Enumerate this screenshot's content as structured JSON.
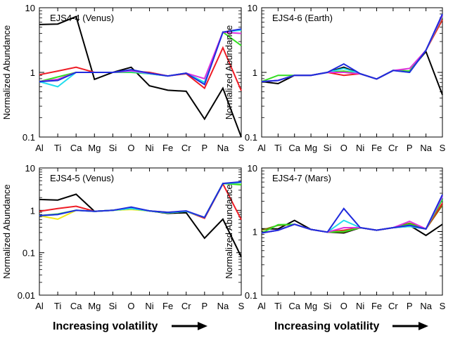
{
  "chart_data": [
    {
      "type": "line",
      "title": "EJS4-4 (Venus)",
      "ylabel": "Normalized Abundance",
      "yscale": "log",
      "ylim": [
        0.1,
        10
      ],
      "yticks": [
        "10",
        "1",
        "0.1"
      ],
      "categories": [
        "Al",
        "Ti",
        "Ca",
        "Mg",
        "Si",
        "O",
        "Ni",
        "Fe",
        "Cr",
        "P",
        "Na",
        "S"
      ],
      "series": [
        {
          "name": "black",
          "color": "#000000",
          "values": [
            5.5,
            5.6,
            7.3,
            0.78,
            1.0,
            1.2,
            0.62,
            0.53,
            0.51,
            0.19,
            0.57,
            0.1
          ]
        },
        {
          "name": "red",
          "color": "#ee1c25",
          "values": [
            0.92,
            1.05,
            1.2,
            1.0,
            1.0,
            1.05,
            1.0,
            0.88,
            0.95,
            0.57,
            2.4,
            0.52
          ]
        },
        {
          "name": "green",
          "color": "#33dd22",
          "values": [
            0.72,
            0.85,
            1.0,
            1.0,
            1.0,
            1.0,
            0.95,
            0.88,
            0.97,
            0.7,
            4.2,
            2.6
          ]
        },
        {
          "name": "cyan",
          "color": "#22ddee",
          "values": [
            0.72,
            0.6,
            1.0,
            1.0,
            1.0,
            1.03,
            0.95,
            0.88,
            0.97,
            0.7,
            4.2,
            4.5
          ]
        },
        {
          "name": "magenta",
          "color": "#dd33dd",
          "values": [
            0.72,
            0.78,
            1.0,
            1.0,
            1.0,
            1.06,
            0.97,
            0.88,
            0.97,
            0.8,
            4.2,
            4.0
          ]
        },
        {
          "name": "blue",
          "color": "#1f2bdd",
          "values": [
            0.72,
            0.75,
            1.0,
            1.0,
            1.0,
            1.1,
            0.97,
            0.88,
            0.97,
            0.65,
            4.2,
            4.7
          ]
        }
      ]
    },
    {
      "type": "line",
      "title": "EJS4-6 (Earth)",
      "ylabel": "Normalized Abundance",
      "yscale": "log",
      "ylim": [
        0.1,
        10
      ],
      "yticks": [
        "10",
        "1",
        "0.1"
      ],
      "categories": [
        "Al",
        "Ti",
        "Ca",
        "Mg",
        "Si",
        "O",
        "Ni",
        "Fe",
        "Cr",
        "P",
        "Na",
        "S"
      ],
      "series": [
        {
          "name": "black",
          "color": "#000000",
          "values": [
            0.72,
            0.67,
            0.9,
            0.9,
            1.0,
            1.2,
            0.95,
            0.79,
            1.07,
            1.05,
            2.1,
            0.45
          ]
        },
        {
          "name": "red",
          "color": "#ee1c25",
          "values": [
            0.72,
            0.75,
            0.9,
            0.9,
            1.0,
            0.9,
            0.95,
            0.79,
            1.07,
            1.05,
            2.2,
            6.5
          ]
        },
        {
          "name": "green",
          "color": "#33dd22",
          "values": [
            0.72,
            0.9,
            0.9,
            0.9,
            1.0,
            1.05,
            0.95,
            0.79,
            1.07,
            1.05,
            2.2,
            7.2
          ]
        },
        {
          "name": "cyan",
          "color": "#22ddee",
          "values": [
            0.72,
            0.75,
            0.9,
            0.9,
            1.0,
            1.15,
            0.95,
            0.79,
            1.07,
            1.0,
            2.2,
            7.5
          ]
        },
        {
          "name": "magenta",
          "color": "#dd33dd",
          "values": [
            0.72,
            0.75,
            0.9,
            0.9,
            1.0,
            1.0,
            0.95,
            0.79,
            1.07,
            1.15,
            2.2,
            7.5
          ]
        },
        {
          "name": "blue",
          "color": "#1f2bdd",
          "values": [
            0.72,
            0.75,
            0.9,
            0.9,
            1.0,
            1.35,
            0.95,
            0.79,
            1.07,
            1.0,
            2.2,
            8.0
          ]
        }
      ]
    },
    {
      "type": "line",
      "title": "EJS4-5 (Venus)",
      "ylabel": "Normalized Abundance",
      "yscale": "log",
      "ylim": [
        0.01,
        10
      ],
      "yticks": [
        "10",
        "1",
        "0.1",
        "0.01"
      ],
      "categories": [
        "Al",
        "Ti",
        "Ca",
        "Mg",
        "Si",
        "O",
        "Ni",
        "Fe",
        "Cr",
        "P",
        "Na",
        "S"
      ],
      "series": [
        {
          "name": "black",
          "color": "#000000",
          "values": [
            1.8,
            1.75,
            2.4,
            0.95,
            1.0,
            1.15,
            0.97,
            0.85,
            0.88,
            0.22,
            0.62,
            0.08
          ]
        },
        {
          "name": "yellow",
          "color": "#f2ea1c",
          "values": [
            0.75,
            0.62,
            1.0,
            0.95,
            1.0,
            1.05,
            0.97,
            0.88,
            0.95,
            0.68,
            4.3,
            4.4
          ]
        },
        {
          "name": "red",
          "color": "#ee1c25",
          "values": [
            0.95,
            1.1,
            1.25,
            0.95,
            1.0,
            1.1,
            0.97,
            0.9,
            0.95,
            0.65,
            4.2,
            0.6
          ]
        },
        {
          "name": "green",
          "color": "#33dd22",
          "values": [
            0.75,
            0.82,
            1.0,
            0.95,
            1.0,
            1.1,
            0.97,
            0.88,
            0.95,
            0.68,
            4.3,
            4.0
          ]
        },
        {
          "name": "cyan",
          "color": "#22ddee",
          "values": [
            0.75,
            0.8,
            1.0,
            0.95,
            1.0,
            1.1,
            0.97,
            0.88,
            0.95,
            0.68,
            4.3,
            4.5
          ]
        },
        {
          "name": "blue",
          "color": "#1f2bdd",
          "values": [
            0.75,
            0.8,
            1.0,
            0.95,
            1.0,
            1.2,
            0.97,
            0.9,
            0.97,
            0.68,
            4.3,
            4.7
          ]
        }
      ]
    },
    {
      "type": "line",
      "title": "EJS4-7 (Mars)",
      "ylabel": "Normalized Abundance",
      "yscale": "log",
      "ylim": [
        0.1,
        10
      ],
      "yticks": [
        "10",
        "1",
        "0.1"
      ],
      "categories": [
        "Al",
        "Ti",
        "Ca",
        "Mg",
        "Si",
        "O",
        "Ni",
        "Fe",
        "Cr",
        "P",
        "Na",
        "S"
      ],
      "series": [
        {
          "name": "black",
          "color": "#000000",
          "values": [
            1.1,
            1.1,
            1.5,
            1.08,
            0.98,
            0.95,
            1.15,
            1.05,
            1.15,
            1.25,
            0.87,
            1.3
          ]
        },
        {
          "name": "olive",
          "color": "#777700",
          "values": [
            1.05,
            1.25,
            1.3,
            1.08,
            0.98,
            0.98,
            1.15,
            1.05,
            1.15,
            1.35,
            1.1,
            2.6
          ]
        },
        {
          "name": "red",
          "color": "#ee1c25",
          "values": [
            0.95,
            1.05,
            1.3,
            1.08,
            0.98,
            1.05,
            1.15,
            1.05,
            1.15,
            1.2,
            1.1,
            2.8
          ]
        },
        {
          "name": "green",
          "color": "#33dd22",
          "values": [
            0.95,
            1.28,
            1.3,
            1.08,
            0.98,
            1.0,
            1.15,
            1.05,
            1.15,
            1.3,
            1.1,
            3.2
          ]
        },
        {
          "name": "cyan",
          "color": "#22ddee",
          "values": [
            0.95,
            1.05,
            1.3,
            1.08,
            0.98,
            1.5,
            1.15,
            1.05,
            1.15,
            1.2,
            1.1,
            3.5
          ]
        },
        {
          "name": "magenta",
          "color": "#dd33dd",
          "values": [
            0.95,
            1.05,
            1.3,
            1.08,
            0.98,
            1.15,
            1.15,
            1.05,
            1.15,
            1.45,
            1.1,
            3.6
          ]
        },
        {
          "name": "blue",
          "color": "#1f2bdd",
          "values": [
            0.95,
            1.05,
            1.3,
            1.08,
            0.98,
            2.3,
            1.15,
            1.05,
            1.15,
            1.25,
            1.1,
            3.8
          ]
        }
      ]
    }
  ],
  "footer": {
    "label_left": "Increasing volatility",
    "label_right": "Increasing volatility",
    "arrow_icon": "right-arrow-icon"
  }
}
